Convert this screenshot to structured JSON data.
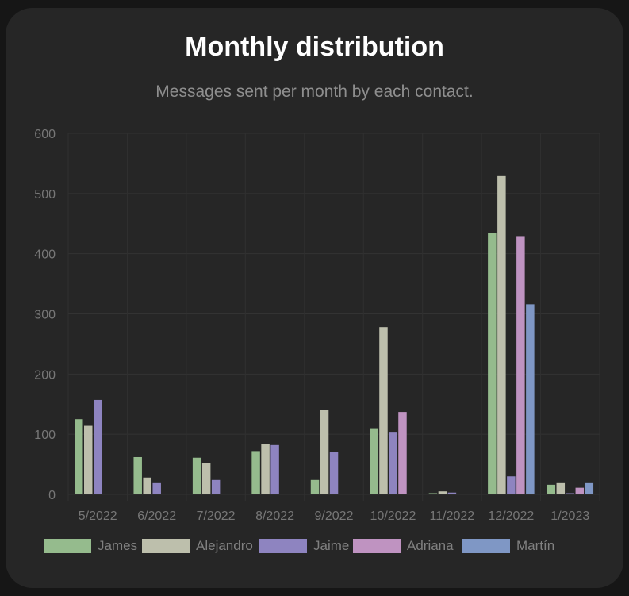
{
  "header": {
    "title": "Monthly distribution",
    "subtitle": "Messages sent per month by each contact."
  },
  "chart_data": {
    "type": "bar",
    "categories": [
      "5/2022",
      "6/2022",
      "7/2022",
      "8/2022",
      "9/2022",
      "10/2022",
      "11/2022",
      "12/2022",
      "1/2023"
    ],
    "yticks": [
      0,
      100,
      200,
      300,
      400,
      500,
      600
    ],
    "ylim": [
      0,
      600
    ],
    "grid": true,
    "legend_position": "bottom",
    "series": [
      {
        "name": "James",
        "color": "#95bb8d",
        "values": [
          125,
          62,
          61,
          72,
          24,
          110,
          2,
          434,
          16
        ]
      },
      {
        "name": "Alejandro",
        "color": "#bdbfac",
        "values": [
          114,
          28,
          52,
          84,
          140,
          278,
          5,
          529,
          20
        ]
      },
      {
        "name": "Jaime",
        "color": "#8e84c0",
        "values": [
          157,
          20,
          24,
          82,
          70,
          104,
          3,
          30,
          2
        ]
      },
      {
        "name": "Adriana",
        "color": "#bf93c1",
        "values": [
          0,
          0,
          0,
          0,
          0,
          137,
          0,
          428,
          11
        ]
      },
      {
        "name": "Martín",
        "color": "#7f97c5",
        "values": [
          0,
          0,
          0,
          0,
          0,
          0,
          0,
          316,
          20
        ]
      }
    ]
  }
}
